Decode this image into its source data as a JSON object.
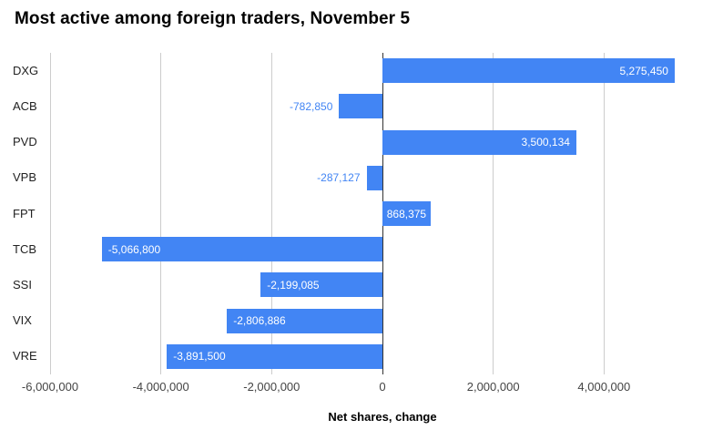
{
  "chart_data": {
    "type": "bar",
    "orientation": "horizontal",
    "title": "Most active among foreign traders, November 5",
    "xlabel": "Net shares, change",
    "legend": "none",
    "grid": true,
    "categories": [
      "DXG",
      "ACB",
      "PVD",
      "VPB",
      "FPT",
      "TCB",
      "SSI",
      "VIX",
      "VRE"
    ],
    "values": [
      5275450,
      -782850,
      3500134,
      -287127,
      868375,
      -5066800,
      -2199085,
      -2806886,
      -3891500
    ],
    "value_labels": [
      "5,275,450",
      "-782,850",
      "3,500,134",
      "-287,127",
      "868,375",
      "-5,066,800",
      "-2,199,085",
      "-2,806,886",
      "-3,891,500"
    ],
    "xlim": [
      -6000000,
      6000000
    ],
    "xticks": [
      {
        "value": -6000000,
        "label": "-6,000,000"
      },
      {
        "value": -4000000,
        "label": "-4,000,000"
      },
      {
        "value": -2000000,
        "label": "-2,000,000"
      },
      {
        "value": 0,
        "label": "0"
      },
      {
        "value": 2000000,
        "label": "2,000,000"
      },
      {
        "value": 4000000,
        "label": "4,000,000"
      }
    ],
    "colors": {
      "bar": "#4285f4",
      "label_inside": "#ffffff",
      "label_outside": "#4285f4",
      "gridline": "#cccccc",
      "zero_line": "#333333",
      "background": "#ffffff"
    }
  }
}
